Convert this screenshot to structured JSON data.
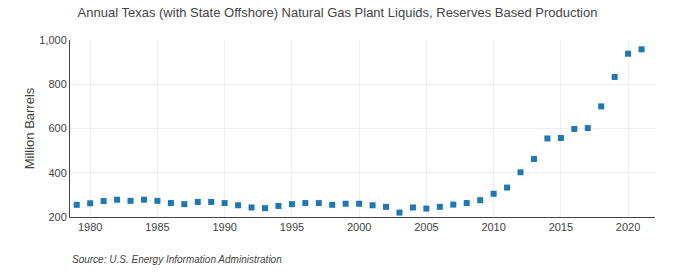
{
  "chart_data": {
    "type": "scatter",
    "title": "Annual Texas (with State Offshore) Natural Gas Plant Liquids, Reserves Based Production",
    "ylabel": "Million Barrels",
    "annotations": [
      "Source: U.S. Energy Information Administration"
    ],
    "x": [
      1979,
      1980,
      1981,
      1982,
      1983,
      1984,
      1985,
      1986,
      1987,
      1988,
      1989,
      1990,
      1991,
      1992,
      1993,
      1994,
      1995,
      1996,
      1997,
      1998,
      1999,
      2000,
      2001,
      2002,
      2003,
      2004,
      2005,
      2006,
      2007,
      2008,
      2009,
      2010,
      2011,
      2012,
      2013,
      2014,
      2015,
      2016,
      2017,
      2018,
      2019,
      2020,
      2021
    ],
    "values": [
      255,
      262,
      272,
      278,
      273,
      278,
      273,
      263,
      258,
      268,
      268,
      263,
      253,
      243,
      240,
      250,
      258,
      263,
      263,
      255,
      260,
      260,
      253,
      246,
      220,
      243,
      238,
      246,
      256,
      263,
      276,
      305,
      333,
      402,
      462,
      555,
      557,
      598,
      602,
      700,
      833,
      938,
      958
    ],
    "marker": "square",
    "xlim": [
      1978.5,
      2022
    ],
    "xticks": [
      1980,
      1985,
      1990,
      1995,
      2000,
      2005,
      2010,
      2015,
      2020
    ],
    "ylim": [
      200,
      1000
    ],
    "yticks": [
      200,
      400,
      600,
      800,
      {
        "value": 1000,
        "label": "1,000"
      }
    ],
    "grid": true
  }
}
